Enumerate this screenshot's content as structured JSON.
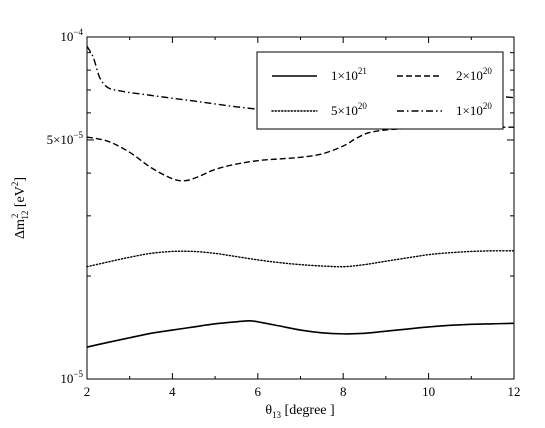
{
  "chart_data": {
    "type": "line",
    "title": "",
    "xlabel": {
      "main": "θ",
      "sub": "13",
      "rest": " [degree ]"
    },
    "ylabel": {
      "pre": "Δm",
      "sup": "2",
      "sub": "12",
      "mid": " [eV",
      "sup2": "2",
      "post": "]"
    },
    "x_range": [
      2,
      12
    ],
    "y_range": [
      1e-05,
      0.0001
    ],
    "y_scale": "log",
    "grid": false,
    "legend_position": "top-right",
    "x_ticks": [
      {
        "value": 2,
        "label": "2"
      },
      {
        "value": 4,
        "label": "4"
      },
      {
        "value": 6,
        "label": "6"
      },
      {
        "value": 8,
        "label": "8"
      },
      {
        "value": 10,
        "label": "10"
      },
      {
        "value": 12,
        "label": "12"
      }
    ],
    "y_major_ticks": [
      {
        "value": 1e-05,
        "base": "10",
        "exp": "−5"
      },
      {
        "value": 5e-05,
        "base": "5×10",
        "exp": "−5"
      },
      {
        "value": 0.0001,
        "base": "10",
        "exp": "−4"
      }
    ],
    "series": [
      {
        "name": {
          "base": "1×10",
          "exp": "21"
        },
        "style": "solid",
        "x": [
          2,
          2.5,
          3,
          3.5,
          4,
          4.5,
          5,
          5.5,
          5.8,
          6,
          6.5,
          7,
          7.5,
          8,
          8.5,
          9,
          9.5,
          10,
          10.5,
          11,
          11.5,
          12
        ],
        "y": [
          1.24e-05,
          1.28e-05,
          1.32e-05,
          1.36e-05,
          1.39e-05,
          1.42e-05,
          1.45e-05,
          1.47e-05,
          1.48e-05,
          1.47e-05,
          1.43e-05,
          1.39e-05,
          1.365e-05,
          1.355e-05,
          1.36e-05,
          1.38e-05,
          1.4e-05,
          1.42e-05,
          1.435e-05,
          1.445e-05,
          1.45e-05,
          1.455e-05
        ]
      },
      {
        "name": {
          "base": "2×10",
          "exp": "20"
        },
        "style": "dashed",
        "x": [
          2,
          2.5,
          3,
          3.5,
          4,
          4.3,
          4.6,
          5,
          5.5,
          6,
          6.5,
          7,
          7.5,
          8,
          8.3,
          8.6,
          9,
          9.5,
          10,
          10.5,
          11,
          11.5,
          12
        ],
        "y": [
          5.1e-05,
          4.95e-05,
          4.6e-05,
          4.15e-05,
          3.85e-05,
          3.8e-05,
          3.9e-05,
          4.1e-05,
          4.25e-05,
          4.35e-05,
          4.4e-05,
          4.45e-05,
          4.55e-05,
          4.8e-05,
          5.05e-05,
          5.25e-05,
          5.35e-05,
          5.4e-05,
          5.43e-05,
          5.45e-05,
          5.45e-05,
          5.45e-05,
          5.45e-05
        ]
      },
      {
        "name": {
          "base": "5×10",
          "exp": "20"
        },
        "style": "dotted",
        "x": [
          2,
          2.5,
          3,
          3.5,
          4,
          4.5,
          5,
          5.5,
          6,
          6.5,
          7,
          7.5,
          8,
          8.5,
          9,
          9.5,
          10,
          10.5,
          11,
          11.5,
          12
        ],
        "y": [
          2.13e-05,
          2.2e-05,
          2.27e-05,
          2.33e-05,
          2.36e-05,
          2.36e-05,
          2.33e-05,
          2.28e-05,
          2.23e-05,
          2.19e-05,
          2.16e-05,
          2.14e-05,
          2.13e-05,
          2.16e-05,
          2.21e-05,
          2.26e-05,
          2.31e-05,
          2.34e-05,
          2.36e-05,
          2.37e-05,
          2.37e-05
        ]
      },
      {
        "name": {
          "base": "1×10",
          "exp": "20"
        },
        "style": "dashdot",
        "x": [
          2,
          2.15,
          2.3,
          2.5,
          2.8,
          3,
          3.5,
          4,
          4.5,
          5,
          5.5,
          6,
          6.5,
          7,
          7.5,
          7.8,
          8,
          8.5,
          9,
          9.5,
          10,
          10.5,
          11,
          11.5,
          12
        ],
        "y": [
          9.4e-05,
          8.7e-05,
          7.6e-05,
          7.1e-05,
          6.95e-05,
          6.88e-05,
          6.75e-05,
          6.62e-05,
          6.5e-05,
          6.37e-05,
          6.25e-05,
          6.15e-05,
          6.08e-05,
          6.02e-05,
          5.98e-05,
          6e-05,
          6.15e-05,
          6.42e-05,
          6.6e-05,
          6.72e-05,
          6.78e-05,
          6.8e-05,
          6.78e-05,
          6.72e-05,
          6.65e-05
        ]
      }
    ]
  }
}
